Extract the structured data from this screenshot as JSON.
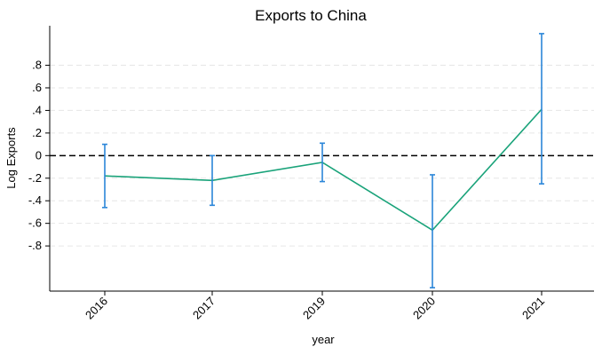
{
  "chart_data": {
    "type": "line",
    "title": "Exports to China",
    "xlabel": "year",
    "ylabel": "Log Exports",
    "categories": [
      "2016",
      "2017",
      "2019",
      "2020",
      "2021"
    ],
    "series": [
      {
        "values": [
          -0.18,
          -0.22,
          -0.06,
          -0.66,
          0.41
        ],
        "ci_lower": [
          -0.46,
          -0.44,
          -0.23,
          -1.17,
          -0.25
        ],
        "ci_upper": [
          0.1,
          0.0,
          0.11,
          -0.17,
          1.08
        ]
      }
    ],
    "yticks": [
      0.8,
      0.6,
      0.4,
      0.2,
      0,
      -0.2,
      -0.4,
      -0.6,
      -0.8
    ],
    "ytick_labels": [
      ".8",
      ".6",
      ".4",
      ".2",
      "0",
      "-.2",
      "-.4",
      "-.6",
      "-.8"
    ],
    "ylim": [
      -1.2,
      1.15
    ],
    "reference_line": 0,
    "grid": true,
    "colors": {
      "line": "#1aa37a",
      "error_bar": "#2b86d9",
      "grid": "#e6e6e6",
      "reference": "#000000"
    }
  }
}
